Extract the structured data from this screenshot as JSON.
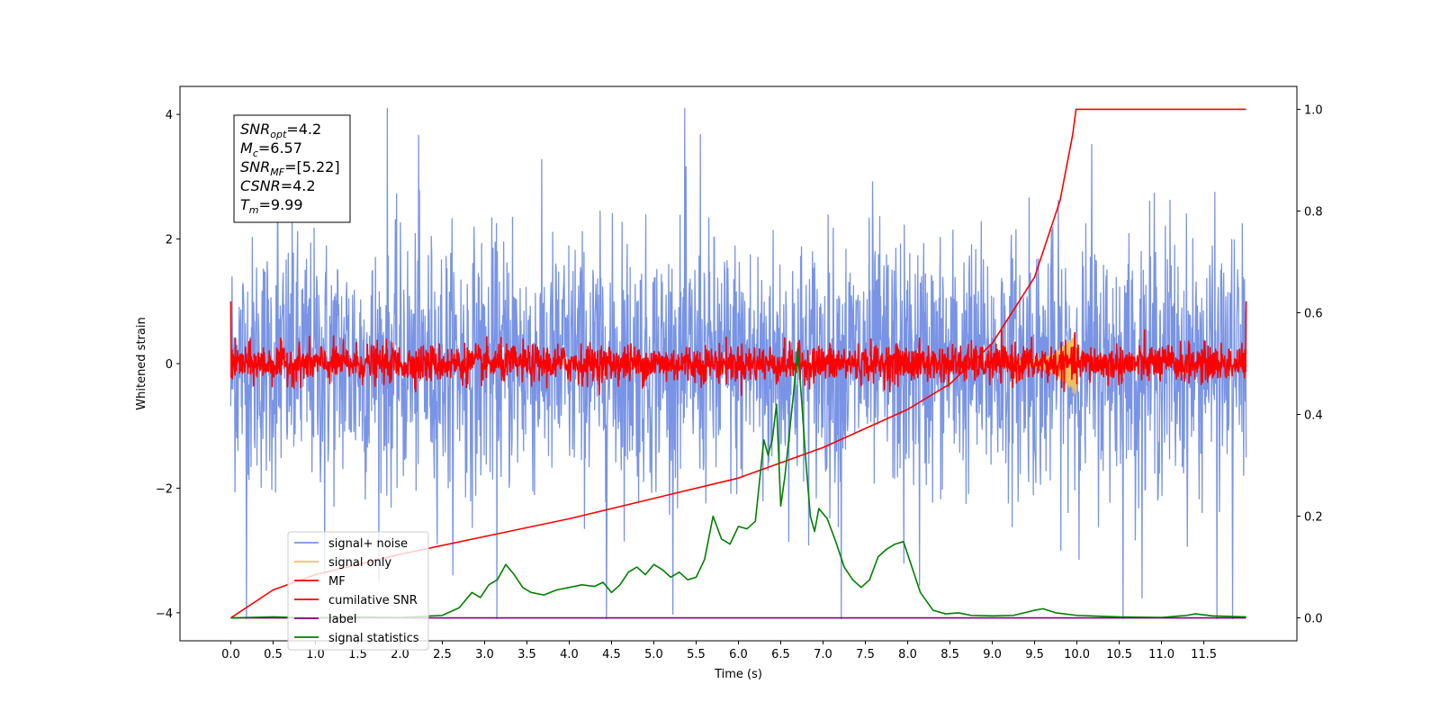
{
  "chart_data": {
    "type": "line",
    "xlabel": "Time (s)",
    "ylabel": "Whitened strain",
    "xlim": [
      -0.6,
      12.6
    ],
    "ylim": [
      -4.45,
      4.45
    ],
    "y2lim": [
      -0.045,
      1.045
    ],
    "x_ticks": [
      "0.0",
      "0.5",
      "1.0",
      "1.5",
      "2.0",
      "2.5",
      "3.0",
      "3.5",
      "4.0",
      "4.5",
      "5.0",
      "5.5",
      "6.0",
      "6.5",
      "7.0",
      "7.5",
      "8.0",
      "8.5",
      "9.0",
      "9.5",
      "10.0",
      "10.5",
      "11.0",
      "11.5"
    ],
    "y_ticks": [
      "−4",
      "−2",
      "0",
      "2",
      "4"
    ],
    "y2_ticks": [
      "0.0",
      "0.2",
      "0.4",
      "0.6",
      "0.8",
      "1.0"
    ],
    "legend_position": "lower-left",
    "annotation": [
      {
        "base": "SNR",
        "sub": "opt",
        "value": "=4.2"
      },
      {
        "base": "M",
        "sub": "c",
        "value": "=6.57"
      },
      {
        "base": "SNR",
        "sub": "MF",
        "value": "=[5.22]"
      },
      {
        "base": "CSNR",
        "sub": "",
        "value": "=4.2"
      },
      {
        "base": "T",
        "sub": "m",
        "value": "=9.99"
      }
    ],
    "series": [
      {
        "name": "signal+ noise",
        "color": "#7994e6",
        "axis": "left",
        "kind": "noise",
        "sigma": 1.0,
        "t_start": 0.0,
        "t_end": 12.0
      },
      {
        "name": "signal only",
        "color": "#f0c060",
        "axis": "left",
        "kind": "chirp",
        "t_start": 9.3,
        "t_end": 10.0
      },
      {
        "name": "MF",
        "color": "#ff0000",
        "axis": "left",
        "kind": "noise",
        "sigma": 0.15,
        "t_start": 0.0,
        "t_end": 12.0,
        "edge_value": 1.0
      },
      {
        "name": "cumilative SNR",
        "color": "#ff0000",
        "axis": "right",
        "x": [
          0.0,
          0.5,
          1.0,
          2.0,
          3.0,
          4.0,
          5.0,
          6.0,
          7.0,
          8.0,
          8.5,
          9.0,
          9.5,
          9.8,
          9.95,
          9.99,
          10.0,
          11.0,
          12.0
        ],
        "y": [
          0.0,
          0.055,
          0.085,
          0.125,
          0.16,
          0.195,
          0.235,
          0.275,
          0.335,
          0.41,
          0.46,
          0.54,
          0.67,
          0.82,
          0.95,
          1.0,
          1.0,
          1.0,
          1.0
        ]
      },
      {
        "name": "label",
        "color": "#800080",
        "axis": "right",
        "x": [
          0.0,
          12.0
        ],
        "y": [
          0.0,
          0.0
        ]
      },
      {
        "name": "signal statistics",
        "color": "#008000",
        "axis": "right",
        "x": [
          0.0,
          0.5,
          1.0,
          1.5,
          2.0,
          2.5,
          2.7,
          2.85,
          2.95,
          3.05,
          3.15,
          3.25,
          3.35,
          3.45,
          3.55,
          3.7,
          3.85,
          4.0,
          4.15,
          4.3,
          4.4,
          4.5,
          4.6,
          4.7,
          4.8,
          4.9,
          5.0,
          5.1,
          5.2,
          5.3,
          5.4,
          5.5,
          5.6,
          5.7,
          5.8,
          5.9,
          6.0,
          6.1,
          6.2,
          6.3,
          6.35,
          6.4,
          6.45,
          6.5,
          6.55,
          6.6,
          6.65,
          6.7,
          6.75,
          6.8,
          6.85,
          6.9,
          6.95,
          7.05,
          7.15,
          7.25,
          7.35,
          7.45,
          7.55,
          7.65,
          7.75,
          7.85,
          7.95,
          8.05,
          8.15,
          8.3,
          8.45,
          8.6,
          8.75,
          9.0,
          9.25,
          9.5,
          9.6,
          9.75,
          10.0,
          10.5,
          11.0,
          11.3,
          11.4,
          11.6,
          12.0
        ],
        "y": [
          0.0,
          0.002,
          0.0,
          0.002,
          0.001,
          0.005,
          0.02,
          0.05,
          0.04,
          0.065,
          0.075,
          0.105,
          0.085,
          0.06,
          0.05,
          0.045,
          0.055,
          0.06,
          0.065,
          0.062,
          0.07,
          0.05,
          0.065,
          0.09,
          0.1,
          0.085,
          0.105,
          0.095,
          0.08,
          0.09,
          0.075,
          0.08,
          0.115,
          0.2,
          0.155,
          0.145,
          0.18,
          0.175,
          0.19,
          0.35,
          0.32,
          0.35,
          0.42,
          0.22,
          0.28,
          0.36,
          0.44,
          0.53,
          0.42,
          0.3,
          0.2,
          0.17,
          0.215,
          0.195,
          0.15,
          0.1,
          0.075,
          0.06,
          0.075,
          0.12,
          0.135,
          0.145,
          0.15,
          0.1,
          0.05,
          0.015,
          0.008,
          0.01,
          0.005,
          0.004,
          0.005,
          0.015,
          0.018,
          0.01,
          0.005,
          0.002,
          0.001,
          0.005,
          0.008,
          0.004,
          0.002
        ]
      }
    ]
  }
}
